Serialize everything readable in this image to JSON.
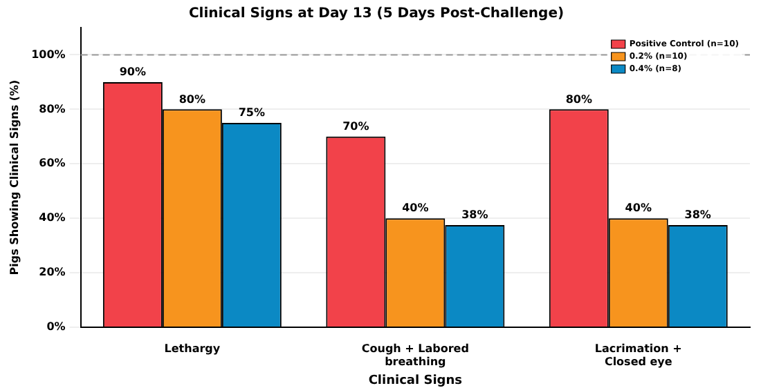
{
  "chart_data": {
    "type": "bar",
    "title": "Clinical Signs at Day 13 (5 Days Post-Challenge)",
    "xlabel": "Clinical Signs",
    "ylabel": "Pigs Showing Clinical Signs (%)",
    "categories": [
      "Lethargy",
      "Cough + Labored breathing",
      "Lacrimation + Closed eye"
    ],
    "series": [
      {
        "name": "Positive Control (n=10)",
        "color": "#f2424a",
        "values": [
          90,
          70,
          80
        ],
        "value_labels": [
          "90%",
          "70%",
          "80%"
        ]
      },
      {
        "name": "0.2% (n=10)",
        "color": "#f7941e",
        "values": [
          80,
          40,
          40
        ],
        "value_labels": [
          "80%",
          "40%",
          "40%"
        ]
      },
      {
        "name": "0.4% (n=8)",
        "color": "#0b89c4",
        "values": [
          75,
          37.5,
          37.5
        ],
        "value_labels": [
          "75%",
          "38%",
          "38%"
        ]
      }
    ],
    "ylim": [
      0,
      110
    ],
    "yticks": [
      {
        "value": 0,
        "label": "0%"
      },
      {
        "value": 20,
        "label": "20%"
      },
      {
        "value": 40,
        "label": "40%"
      },
      {
        "value": 60,
        "label": "60%"
      },
      {
        "value": 80,
        "label": "80%"
      },
      {
        "value": 100,
        "label": "100%"
      }
    ],
    "grid": "y",
    "legend": "top right",
    "ref_lines": [
      {
        "axis": "y",
        "value": 100,
        "color": "#999999",
        "line_style": "dashed"
      }
    ]
  }
}
